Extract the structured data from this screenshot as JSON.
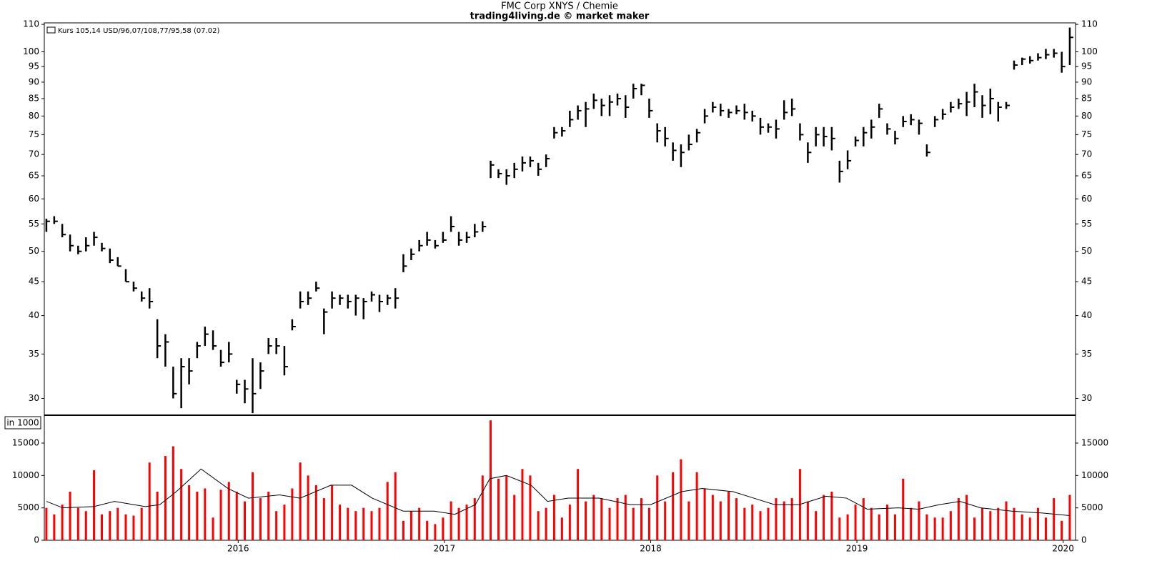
{
  "chart_data": [
    {
      "type": "ohlc",
      "title": "FMC Corp XNYS / Chemie",
      "subtitle": "trading4living.de © market maker",
      "x": [
        2015.07,
        2015.108,
        2015.147,
        2015.185,
        2015.224,
        2015.262,
        2015.301,
        2015.339,
        2015.378,
        2015.416,
        2015.455,
        2015.493,
        2015.532,
        2015.57,
        2015.608,
        2015.647,
        2015.685,
        2015.724,
        2015.762,
        2015.801,
        2015.839,
        2015.878,
        2015.916,
        2015.955,
        2015.993,
        2016.032,
        2016.07,
        2016.108,
        2016.147,
        2016.185,
        2016.224,
        2016.262,
        2016.301,
        2016.339,
        2016.378,
        2016.416,
        2016.455,
        2016.493,
        2016.532,
        2016.57,
        2016.608,
        2016.647,
        2016.685,
        2016.724,
        2016.762,
        2016.801,
        2016.839,
        2016.878,
        2016.916,
        2016.955,
        2016.993,
        2017.032,
        2017.07,
        2017.108,
        2017.147,
        2017.185,
        2017.224,
        2017.262,
        2017.301,
        2017.339,
        2017.378,
        2017.416,
        2017.455,
        2017.493,
        2017.532,
        2017.57,
        2017.608,
        2017.647,
        2017.685,
        2017.724,
        2017.762,
        2017.801,
        2017.839,
        2017.878,
        2017.916,
        2017.955,
        2017.993,
        2018.032,
        2018.07,
        2018.108,
        2018.147,
        2018.185,
        2018.224,
        2018.262,
        2018.301,
        2018.339,
        2018.378,
        2018.416,
        2018.455,
        2018.493,
        2018.532,
        2018.57,
        2018.608,
        2018.647,
        2018.685,
        2018.724,
        2018.762,
        2018.801,
        2018.839,
        2018.878,
        2018.916,
        2018.955,
        2018.993,
        2019.032,
        2019.07,
        2019.108,
        2019.147,
        2019.185,
        2019.224,
        2019.262,
        2019.301,
        2019.339,
        2019.378,
        2019.416,
        2019.455,
        2019.493,
        2019.532,
        2019.57,
        2019.608,
        2019.647,
        2019.685,
        2019.724,
        2019.762,
        2019.801,
        2019.839,
        2019.878,
        2019.916,
        2019.955,
        2019.993,
        2020.032
      ],
      "series": [
        {
          "name": "Kurs 105,14 USD/96,07/108,77/95,58 (07.02)",
          "color": "#000000",
          "high": [
            56,
            56.5,
            55,
            53,
            51,
            52.5,
            53.5,
            51.5,
            50.5,
            49,
            47,
            45,
            43.5,
            44,
            39.5,
            37.5,
            33.5,
            34.5,
            34.5,
            36.5,
            38.5,
            38,
            35.5,
            36.5,
            32,
            32,
            34.5,
            34,
            37,
            37,
            36,
            39.5,
            43.5,
            43.5,
            45,
            41,
            43.5,
            43,
            43,
            43,
            42.5,
            43.5,
            43,
            43,
            44,
            49.5,
            50.5,
            52,
            53.5,
            52,
            53.5,
            56.5,
            53.5,
            53.5,
            55,
            55.5,
            68.5,
            66.5,
            66.5,
            68,
            69.5,
            69.5,
            68,
            70,
            77,
            77,
            81.5,
            83,
            84,
            86.5,
            85,
            86,
            86.5,
            86,
            89.5,
            89.5,
            85,
            78,
            77,
            73,
            72.5,
            75,
            76.5,
            82,
            84,
            83.5,
            82,
            83,
            83.5,
            81.5,
            79.5,
            78,
            79,
            84.5,
            85,
            78,
            73,
            77,
            77,
            77,
            68.5,
            71,
            74.5,
            77,
            79,
            83.5,
            78,
            76,
            80,
            80.5,
            79,
            72.5,
            80,
            82,
            84,
            85,
            87,
            89.5,
            86,
            88,
            84,
            84,
            97,
            98,
            98.5,
            99.5,
            101,
            101,
            100,
            108.8
          ],
          "low": [
            53.5,
            55,
            52.5,
            50,
            49.5,
            50,
            51,
            50,
            48,
            47.5,
            45,
            43.5,
            42,
            41,
            34.5,
            33.5,
            30,
            29,
            31.5,
            34.5,
            36,
            35.5,
            33.5,
            34,
            30.5,
            29.5,
            28.5,
            31,
            35,
            35,
            32.5,
            38,
            41,
            41.5,
            43.5,
            37.5,
            41,
            41.5,
            41,
            40,
            39.5,
            42,
            40.5,
            41.5,
            41,
            46.5,
            48.5,
            50,
            51,
            50.5,
            51.5,
            53.5,
            51,
            51.5,
            52.5,
            53.5,
            64.5,
            64.5,
            63,
            64.5,
            66,
            67,
            65,
            67,
            74,
            74.5,
            77,
            79,
            77,
            82,
            80,
            80,
            83,
            79.5,
            85,
            86,
            79.5,
            73,
            72,
            68.5,
            67,
            71,
            73,
            78,
            81,
            80,
            79.5,
            80.5,
            79,
            78.5,
            75,
            75.5,
            74,
            79,
            80,
            73.5,
            68,
            72,
            72,
            71,
            63.5,
            66.5,
            72,
            72,
            74,
            79.5,
            75,
            72.5,
            77,
            77.5,
            75,
            69.5,
            77,
            79,
            81,
            82,
            80,
            82.5,
            79.5,
            80.5,
            78.5,
            82,
            94,
            95.5,
            96,
            97,
            97.5,
            98,
            93,
            95.5
          ],
          "close": [
            55.5,
            55.5,
            53,
            51,
            50,
            51,
            52.5,
            50.5,
            48.5,
            47.5,
            45,
            44,
            42.5,
            42,
            36,
            36.5,
            30.5,
            33.5,
            33,
            36,
            37.5,
            36,
            34,
            35,
            31.5,
            31,
            30.5,
            33,
            36,
            36,
            33.5,
            38.5,
            42,
            42.5,
            44,
            40.5,
            42.5,
            42.5,
            42,
            42.5,
            42,
            43,
            42,
            42.5,
            42.5,
            47.5,
            49.5,
            51,
            52,
            51,
            52,
            54.5,
            52,
            52.5,
            53.5,
            54.5,
            67.5,
            65.5,
            65,
            66.5,
            68,
            68.5,
            66.5,
            69,
            75.5,
            76,
            79,
            81.5,
            82,
            84.5,
            83,
            84,
            85,
            82.5,
            88,
            89,
            81.5,
            76,
            74,
            71,
            70.5,
            72.5,
            75.5,
            80,
            82.5,
            81.5,
            81,
            81.5,
            81,
            80,
            77,
            77,
            76.5,
            81,
            82,
            75,
            70.5,
            75,
            74.5,
            74,
            66,
            68.5,
            73.5,
            75.5,
            77,
            82,
            76.5,
            74,
            78.5,
            79,
            78,
            70.5,
            79,
            80.5,
            82.5,
            83.5,
            84,
            87,
            83,
            85,
            82.5,
            83,
            95.5,
            97.5,
            97,
            98,
            99,
            99.5,
            95,
            105.14
          ]
        }
      ],
      "log_scale": true,
      "xlim": [
        2015.06,
        2020.06
      ],
      "ylim": [
        28.3,
        110.3
      ],
      "yticks": [
        30,
        35,
        40,
        45,
        50,
        55,
        60,
        65,
        70,
        75,
        80,
        85,
        90,
        95,
        100,
        110
      ]
    },
    {
      "type": "bar",
      "y_label": "in 1000",
      "x": [
        2015.07,
        2015.108,
        2015.147,
        2015.185,
        2015.224,
        2015.262,
        2015.301,
        2015.339,
        2015.378,
        2015.416,
        2015.455,
        2015.493,
        2015.532,
        2015.57,
        2015.608,
        2015.647,
        2015.685,
        2015.724,
        2015.762,
        2015.801,
        2015.839,
        2015.878,
        2015.916,
        2015.955,
        2015.993,
        2016.032,
        2016.07,
        2016.108,
        2016.147,
        2016.185,
        2016.224,
        2016.262,
        2016.301,
        2016.339,
        2016.378,
        2016.416,
        2016.455,
        2016.493,
        2016.532,
        2016.57,
        2016.608,
        2016.647,
        2016.685,
        2016.724,
        2016.762,
        2016.801,
        2016.839,
        2016.878,
        2016.916,
        2016.955,
        2016.993,
        2017.032,
        2017.07,
        2017.108,
        2017.147,
        2017.185,
        2017.224,
        2017.262,
        2017.301,
        2017.339,
        2017.378,
        2017.416,
        2017.455,
        2017.493,
        2017.532,
        2017.57,
        2017.608,
        2017.647,
        2017.685,
        2017.724,
        2017.762,
        2017.801,
        2017.839,
        2017.878,
        2017.916,
        2017.955,
        2017.993,
        2018.032,
        2018.07,
        2018.108,
        2018.147,
        2018.185,
        2018.224,
        2018.262,
        2018.301,
        2018.339,
        2018.378,
        2018.416,
        2018.455,
        2018.493,
        2018.532,
        2018.57,
        2018.608,
        2018.647,
        2018.685,
        2018.724,
        2018.762,
        2018.801,
        2018.839,
        2018.878,
        2018.916,
        2018.955,
        2018.993,
        2019.032,
        2019.07,
        2019.108,
        2019.147,
        2019.185,
        2019.224,
        2019.262,
        2019.301,
        2019.339,
        2019.378,
        2019.416,
        2019.455,
        2019.493,
        2019.532,
        2019.57,
        2019.608,
        2019.647,
        2019.685,
        2019.724,
        2019.762,
        2019.801,
        2019.839,
        2019.878,
        2019.916,
        2019.955,
        2019.993,
        2020.032
      ],
      "series": [
        {
          "color": "#ff0000",
          "values": [
            5000,
            4000,
            5500,
            7500,
            5000,
            4500,
            10800,
            4000,
            4500,
            5000,
            4000,
            3800,
            5000,
            12000,
            7500,
            13000,
            14500,
            11000,
            8500,
            7500,
            8000,
            3500,
            7800,
            9000,
            7500,
            6000,
            10500,
            6500,
            7500,
            4500,
            5500,
            8000,
            12000,
            10000,
            8500,
            6500,
            8500,
            5500,
            5000,
            4500,
            5000,
            4500,
            5000,
            9000,
            10500,
            3000,
            4500,
            5000,
            3000,
            2500,
            3500,
            6000,
            5000,
            5500,
            6500,
            10000,
            18500,
            9500,
            10000,
            7000,
            11000,
            10000,
            4500,
            5000,
            7000,
            3500,
            5500,
            11000,
            6000,
            7000,
            6500,
            5000,
            6500,
            7000,
            5000,
            6500,
            5000,
            10000,
            6000,
            10500,
            12500,
            6000,
            10500,
            8000,
            7000,
            6000,
            7500,
            6500,
            5000,
            5500,
            4500,
            5000,
            6500,
            6000,
            6500,
            11000,
            6000,
            4500,
            7000,
            7500,
            3500,
            4000,
            5500,
            6500,
            5000,
            4000,
            5500,
            4000,
            9500,
            5000,
            6000,
            4000,
            3500,
            3500,
            4500,
            6500,
            7000,
            3500,
            5000,
            4500,
            5000,
            6000,
            5000,
            4000,
            3500,
            5000,
            3500,
            6500,
            3000,
            7000
          ]
        }
      ],
      "average": {
        "color": "#000000",
        "x": [
          2015.07,
          2015.15,
          2015.3,
          2015.4,
          2015.55,
          2015.62,
          2015.7,
          2015.82,
          2015.95,
          2016.05,
          2016.2,
          2016.3,
          2016.45,
          2016.55,
          2016.65,
          2016.8,
          2016.95,
          2017.05,
          2017.15,
          2017.22,
          2017.3,
          2017.42,
          2017.5,
          2017.6,
          2017.75,
          2017.9,
          2018.0,
          2018.15,
          2018.25,
          2018.4,
          2018.5,
          2018.6,
          2018.72,
          2018.85,
          2018.95,
          2019.05,
          2019.2,
          2019.3,
          2019.4,
          2019.5,
          2019.6,
          2019.75,
          2019.9,
          2020.032
        ],
        "values": [
          6000,
          5000,
          5200,
          6000,
          5200,
          5500,
          7500,
          11000,
          8000,
          6500,
          7000,
          6500,
          8500,
          8500,
          6500,
          4500,
          4500,
          4000,
          5500,
          9500,
          10000,
          8500,
          6000,
          6500,
          6500,
          5500,
          5500,
          7500,
          8000,
          7500,
          6500,
          5500,
          5500,
          6800,
          6500,
          4800,
          5000,
          4800,
          5500,
          6000,
          5000,
          4500,
          4200,
          3800
        ]
      },
      "xlim": [
        2015.06,
        2020.06
      ],
      "ylim": [
        0,
        19300
      ],
      "yticks": [
        0,
        5000,
        10000,
        15000
      ],
      "xticks": [
        2016,
        2017,
        2018,
        2019,
        2020
      ]
    }
  ]
}
